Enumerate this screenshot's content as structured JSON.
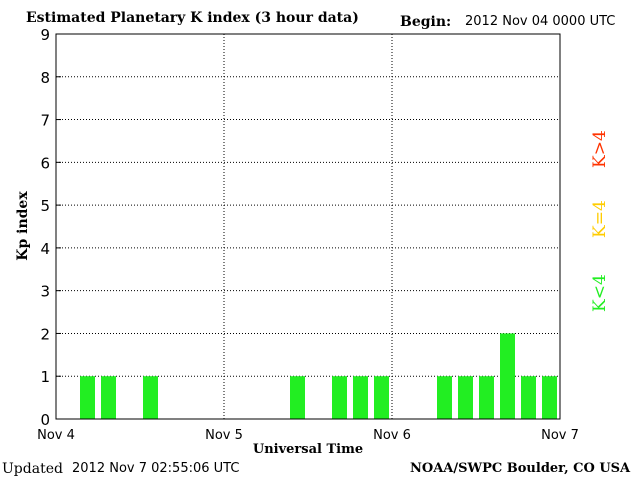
{
  "header": {
    "title": "Estimated Planetary K index (3 hour data)",
    "begin_label": "Begin:",
    "begin_value": "2012 Nov 04 0000 UTC"
  },
  "footer": {
    "updated_label": "Updated",
    "updated_value": "2012 Nov  7 02:55:06 UTC",
    "source": "NOAA/SWPC Boulder, CO USA"
  },
  "legend": [
    {
      "label": "K>4",
      "color": "#ff3300"
    },
    {
      "label": "K=4",
      "color": "#ffcc00"
    },
    {
      "label": "K<4",
      "color": "#22ee22"
    }
  ],
  "chart_data": {
    "type": "bar",
    "title": "Estimated Planetary K index (3 hour data)",
    "xlabel": "Universal Time",
    "ylabel": "Kp index",
    "ylim": [
      0,
      9
    ],
    "yticks": [
      "0",
      "1",
      "2",
      "3",
      "4",
      "5",
      "6",
      "7",
      "8",
      "9"
    ],
    "xticks": [
      "Nov 4",
      "Nov 5",
      "Nov 6",
      "Nov 7"
    ],
    "grid": true,
    "interval_hours": 3,
    "days": 3,
    "values": [
      0,
      1,
      1,
      0,
      1,
      0,
      0,
      0,
      0,
      0,
      0,
      1,
      0,
      1,
      1,
      1,
      0,
      0,
      1,
      1,
      1,
      2,
      1,
      1
    ],
    "bar_color": "#22ee22"
  }
}
